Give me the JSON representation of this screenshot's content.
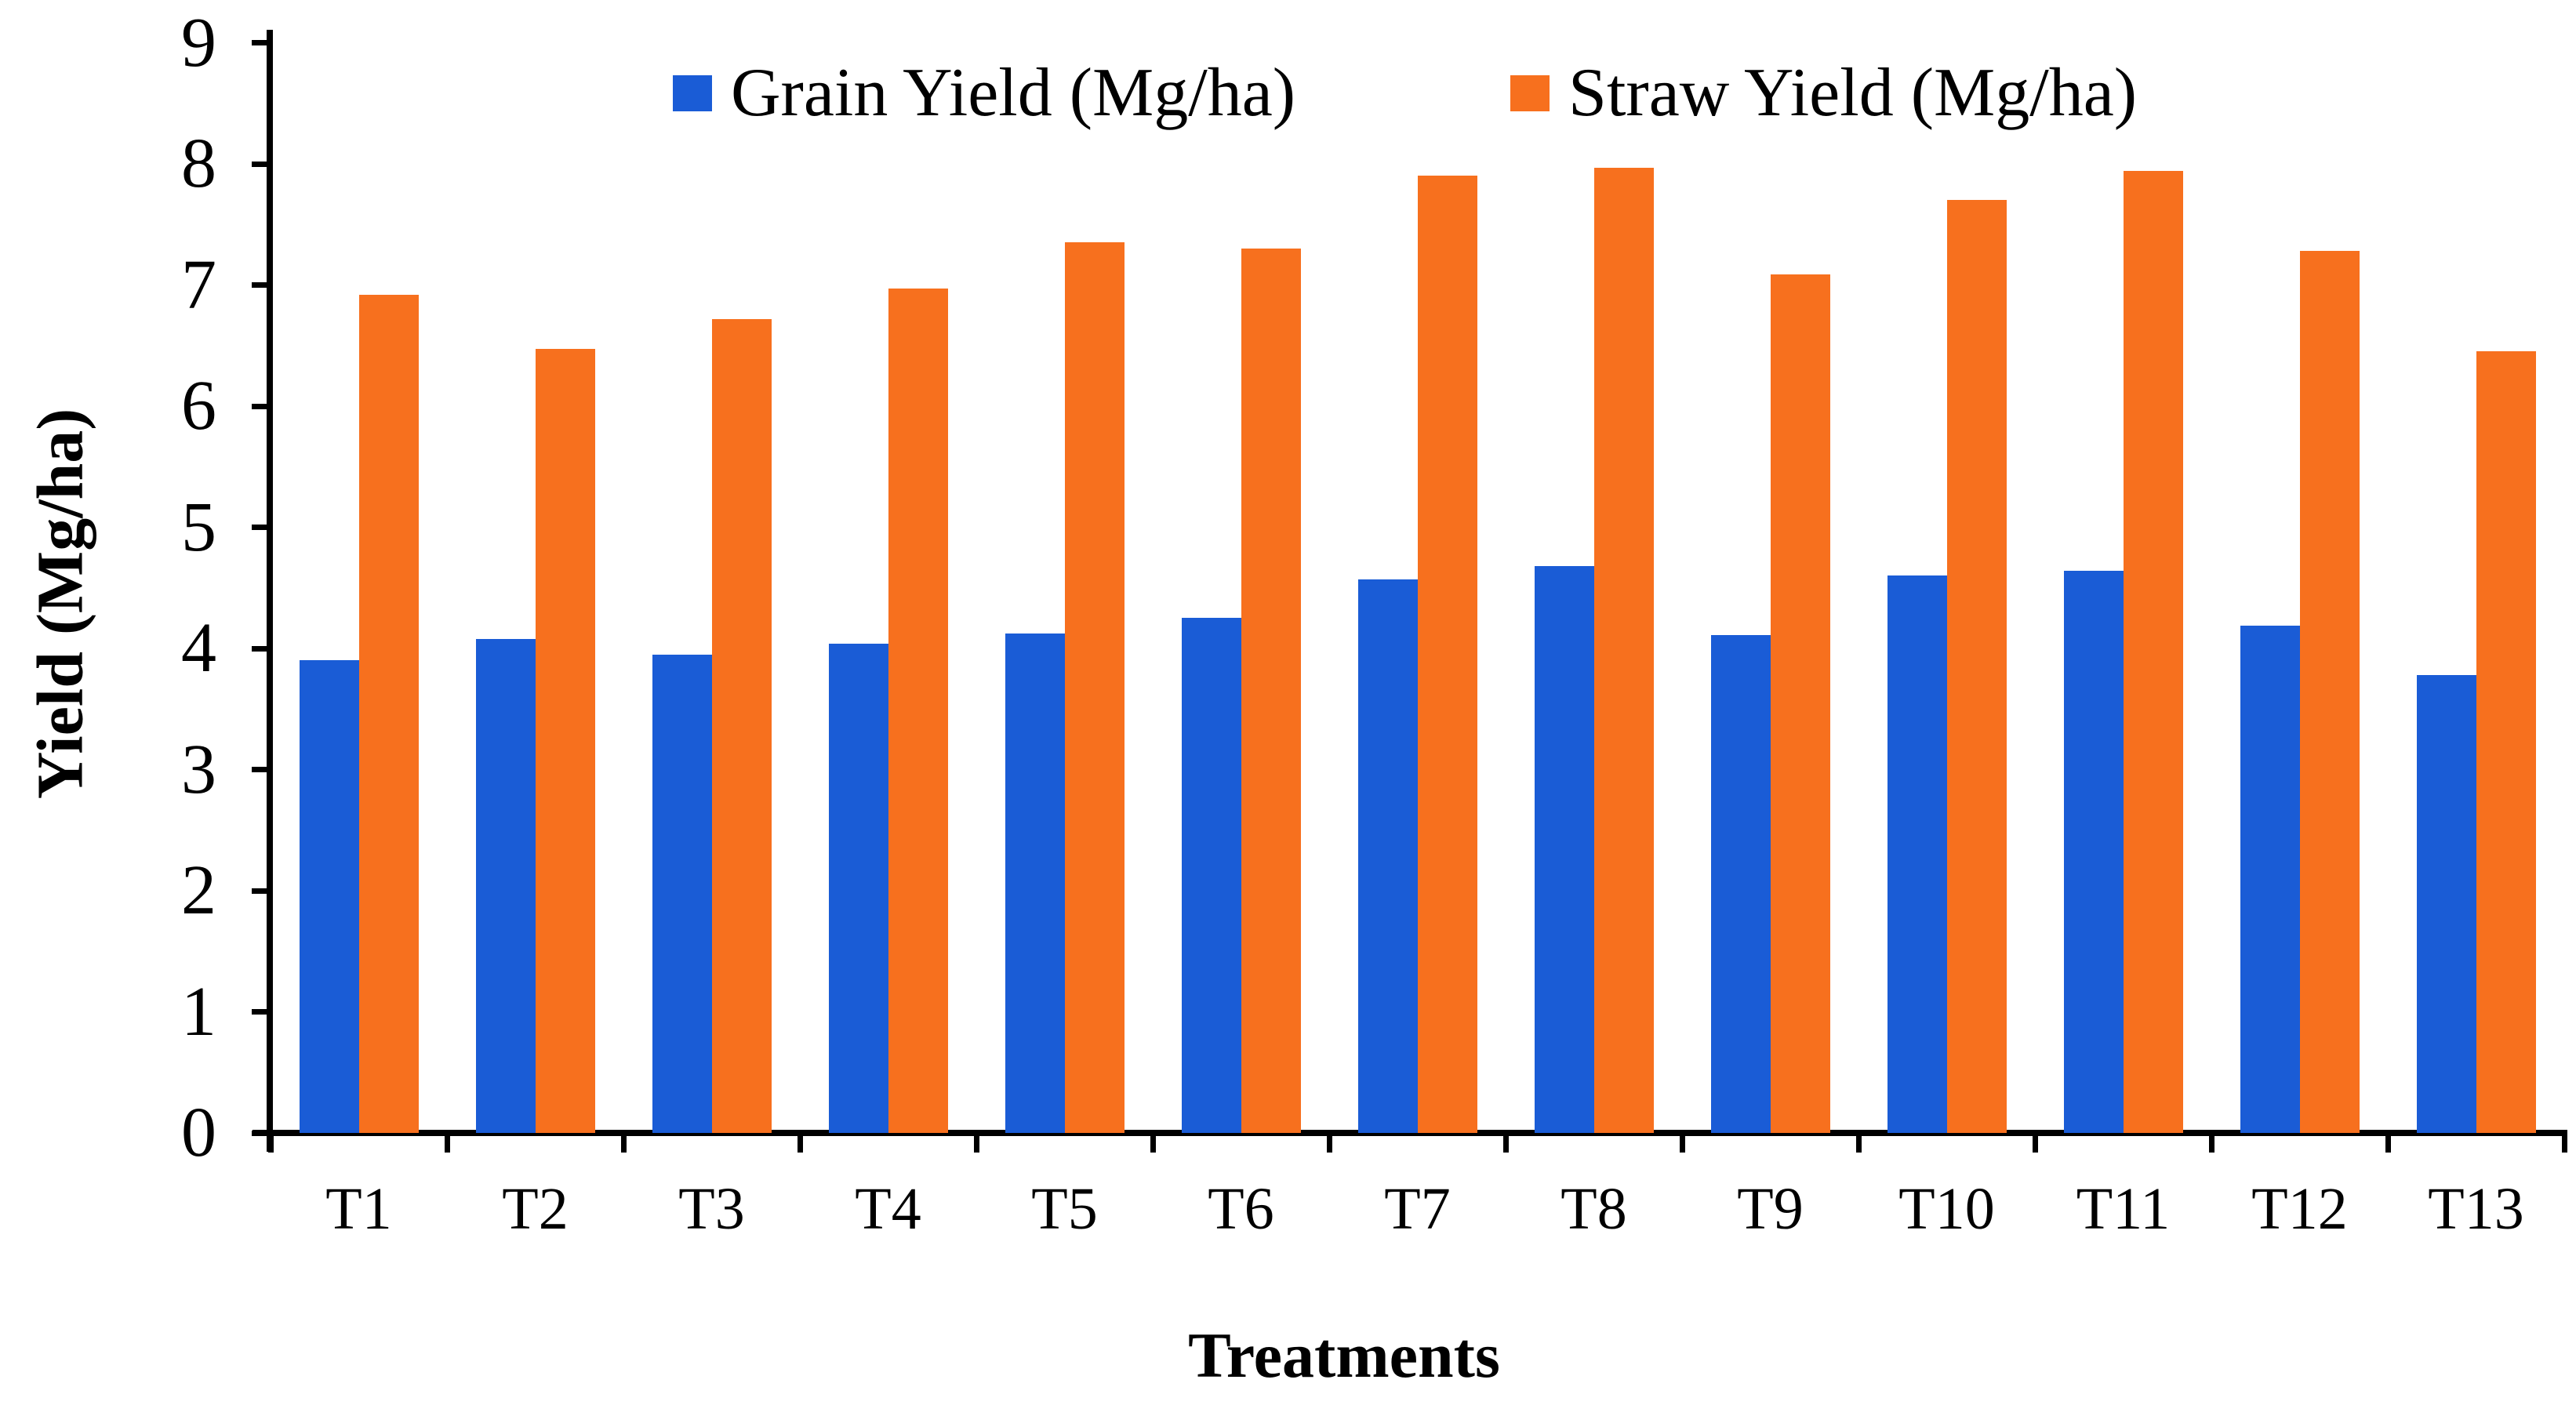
{
  "figure": {
    "background": "#ffffff",
    "text_color": "#000000",
    "axis_color": "#000000"
  },
  "chart_data": {
    "type": "bar",
    "title": "",
    "xlabel": "Treatments",
    "ylabel": "Yield (Mg/ha)",
    "categories": [
      "T1",
      "T2",
      "T3",
      "T4",
      "T5",
      "T6",
      "T7",
      "T8",
      "T9",
      "T10",
      "T11",
      "T12",
      "T13"
    ],
    "series": [
      {
        "name": "Grain Yield (Mg/ha)",
        "color": "#1A5CD6",
        "values": [
          3.9,
          4.08,
          3.95,
          4.04,
          4.12,
          4.25,
          4.57,
          4.68,
          4.11,
          4.6,
          4.64,
          4.19,
          3.78
        ]
      },
      {
        "name": "Straw Yield (Mg/ha)",
        "color": "#F7701E",
        "values": [
          6.92,
          6.47,
          6.72,
          6.97,
          7.35,
          7.3,
          7.9,
          7.97,
          7.09,
          7.7,
          7.94,
          7.28,
          6.45
        ]
      }
    ],
    "ylim": [
      0,
      9
    ],
    "yticks": [
      0,
      1,
      2,
      3,
      4,
      5,
      6,
      7,
      8,
      9
    ],
    "grid": false,
    "legend_position": "top-center",
    "bar_gap_within_group": 0
  }
}
